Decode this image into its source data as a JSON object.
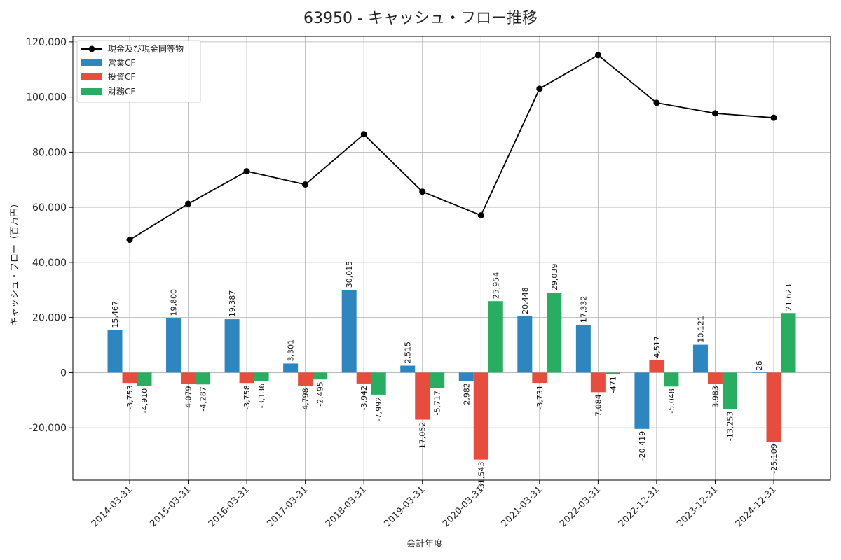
{
  "chart_data": {
    "type": "bar",
    "title": "63950 - キャッシュ・フロー推移",
    "xlabel": "会計年度",
    "ylabel": "キャッシュ・フロー（百万円）",
    "categories": [
      "2014-03-31",
      "2015-03-31",
      "2016-03-31",
      "2017-03-31",
      "2018-03-31",
      "2019-03-31",
      "2020-03-31",
      "2021-03-31",
      "2022-03-31",
      "2022-12-31",
      "2023-12-31",
      "2024-12-31"
    ],
    "ylim": [
      -39000,
      122000
    ],
    "yticks": [
      -20000,
      0,
      20000,
      40000,
      60000,
      80000,
      100000,
      120000
    ],
    "ytick_labels": [
      "-20,000",
      "0",
      "20,000",
      "40,000",
      "60,000",
      "80,000",
      "100,000",
      "120,000"
    ],
    "grid": true,
    "legend_position": "top-left",
    "series": [
      {
        "name": "営業CF",
        "kind": "bar",
        "color": "#2e86c1",
        "values": [
          15467,
          19800,
          19387,
          3301,
          30015,
          2515,
          -2982,
          20448,
          17332,
          -20419,
          10121,
          26
        ],
        "labels": [
          "15,467",
          "19,800",
          "19,387",
          "3,301",
          "30,015",
          "2,515",
          "-2,982",
          "20,448",
          "17,332",
          "-20,419",
          "10,121",
          "26"
        ]
      },
      {
        "name": "投資CF",
        "kind": "bar",
        "color": "#e74c3c",
        "values": [
          -3753,
          -4079,
          -3758,
          -4798,
          -3942,
          -17052,
          -31543,
          -3731,
          -7084,
          4517,
          -3983,
          -25109
        ],
        "labels": [
          "-3,753",
          "-4,079",
          "-3,758",
          "-4,798",
          "-3,942",
          "-17,052",
          "-31,543",
          "-3,731",
          "-7,084",
          "4,517",
          "-3,983",
          "-25,109"
        ]
      },
      {
        "name": "財務CF",
        "kind": "bar",
        "color": "#27ae60",
        "values": [
          -4910,
          -4287,
          -3136,
          -2495,
          -7992,
          -5717,
          25954,
          29039,
          -471,
          -5048,
          -13253,
          21623
        ],
        "labels": [
          "-4,910",
          "-4,287",
          "-3,136",
          "-2,495",
          "-7,992",
          "-5,717",
          "25,954",
          "29,039",
          "-471",
          "-5,048",
          "-13,253",
          "21,623"
        ]
      },
      {
        "name": "現金及び現金同等物",
        "kind": "line",
        "color": "#000000",
        "values": [
          48200,
          61300,
          73100,
          68300,
          86500,
          65700,
          57100,
          103000,
          115200,
          97900,
          94100,
          92500
        ]
      }
    ]
  }
}
